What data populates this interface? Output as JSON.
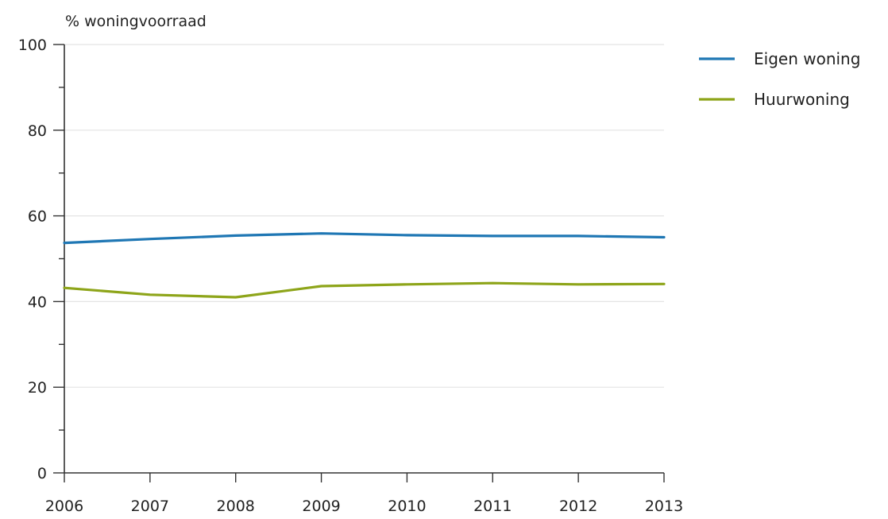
{
  "chart_data": {
    "type": "line",
    "ylabel": "% woningvoorraad",
    "xlabel": "",
    "x": [
      2006,
      2007,
      2008,
      2009,
      2010,
      2011,
      2012,
      2013
    ],
    "x_tick_labels": [
      "2006",
      "2007",
      "2008",
      "2009",
      "2010",
      "2011",
      "2012",
      "2013"
    ],
    "ylim": [
      0,
      100
    ],
    "y_ticks": [
      0,
      20,
      40,
      60,
      80,
      100
    ],
    "y_tick_labels": [
      "0",
      "20",
      "40",
      "60",
      "80",
      "100"
    ],
    "grid": true,
    "legend_position": "top-right",
    "series": [
      {
        "name": "Eigen woning",
        "color": "#1f77b4",
        "values": [
          53.7,
          54.6,
          55.4,
          55.9,
          55.5,
          55.3,
          55.3,
          55.0
        ]
      },
      {
        "name": "Huurwoning",
        "color": "#8ea51a",
        "values": [
          43.2,
          41.6,
          41.0,
          43.6,
          44.0,
          44.3,
          44.0,
          44.1
        ]
      }
    ]
  }
}
